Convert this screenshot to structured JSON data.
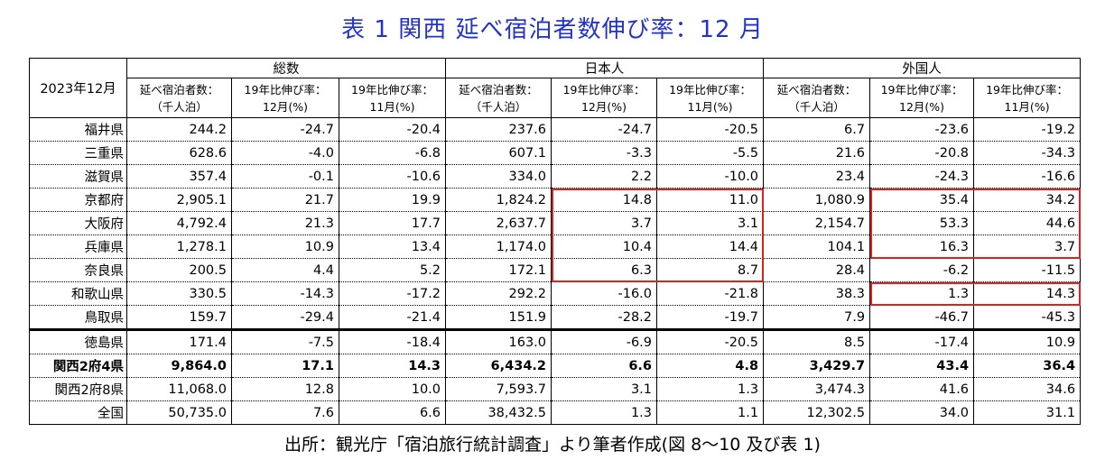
{
  "title": "表 1  関西 延べ宿泊者数伸び率：12 月",
  "table": {
    "corner": "2023年12月",
    "groups": [
      "総数",
      "日本人",
      "外国人"
    ],
    "subheaders": [
      [
        "延べ宿泊者数：",
        "（千人泊）"
      ],
      [
        "19年比伸び率：",
        "12月(%)"
      ],
      [
        "19年比伸び率：",
        "11月(%)"
      ],
      [
        "延べ宿泊者数：",
        "（千人泊）"
      ],
      [
        "19年比伸び率：",
        "12月(%)"
      ],
      [
        "19年比伸び率：",
        "11月(%)"
      ],
      [
        "延べ宿泊者数：",
        "（千人泊）"
      ],
      [
        "19年比伸び率：",
        "12月(%)"
      ],
      [
        "19年比伸び率：",
        "11月(%)"
      ]
    ],
    "rows": [
      [
        "福井県",
        "244.2",
        "-24.7",
        "-20.4",
        "237.6",
        "-24.7",
        "-20.5",
        "6.7",
        "-23.6",
        "-19.2"
      ],
      [
        "三重県",
        "628.6",
        "-4.0",
        "-6.8",
        "607.1",
        "-3.3",
        "-5.5",
        "21.6",
        "-20.8",
        "-34.3"
      ],
      [
        "滋賀県",
        "357.4",
        "-0.1",
        "-10.6",
        "334.0",
        "2.2",
        "-10.0",
        "23.4",
        "-24.3",
        "-16.6"
      ],
      [
        "京都府",
        "2,905.1",
        "21.7",
        "19.9",
        "1,824.2",
        "14.8",
        "11.0",
        "1,080.9",
        "35.4",
        "34.2"
      ],
      [
        "大阪府",
        "4,792.4",
        "21.3",
        "17.7",
        "2,637.7",
        "3.7",
        "3.1",
        "2,154.7",
        "53.3",
        "44.6"
      ],
      [
        "兵庫県",
        "1,278.1",
        "10.9",
        "13.4",
        "1,174.0",
        "10.4",
        "14.4",
        "104.1",
        "16.3",
        "3.7"
      ],
      [
        "奈良県",
        "200.5",
        "4.4",
        "5.2",
        "172.1",
        "6.3",
        "8.7",
        "28.4",
        "-6.2",
        "-11.5"
      ],
      [
        "和歌山県",
        "330.5",
        "-14.3",
        "-17.2",
        "292.2",
        "-16.0",
        "-21.8",
        "38.3",
        "1.3",
        "14.3"
      ],
      [
        "鳥取県",
        "159.7",
        "-29.4",
        "-21.4",
        "151.9",
        "-28.2",
        "-19.7",
        "7.9",
        "-46.7",
        "-45.3"
      ],
      [
        "徳島県",
        "171.4",
        "-7.5",
        "-18.4",
        "163.0",
        "-6.9",
        "-20.5",
        "8.5",
        "-17.4",
        "10.9"
      ],
      [
        "関西2府4県",
        "9,864.0",
        "17.1",
        "14.3",
        "6,434.2",
        "6.6",
        "4.8",
        "3,429.7",
        "43.4",
        "36.4"
      ],
      [
        "関西2府8県",
        "11,068.0",
        "12.8",
        "10.0",
        "7,593.7",
        "3.1",
        "1.3",
        "3,474.3",
        "41.6",
        "34.6"
      ],
      [
        "全国",
        "50,735.0",
        "7.6",
        "6.6",
        "38,432.5",
        "1.3",
        "1.1",
        "12,302.5",
        "34.0",
        "31.1"
      ]
    ]
  },
  "footer": "出所：観光庁「宿泊旅行統計調査」より筆者作成(図 8～10 及び表 1)"
}
